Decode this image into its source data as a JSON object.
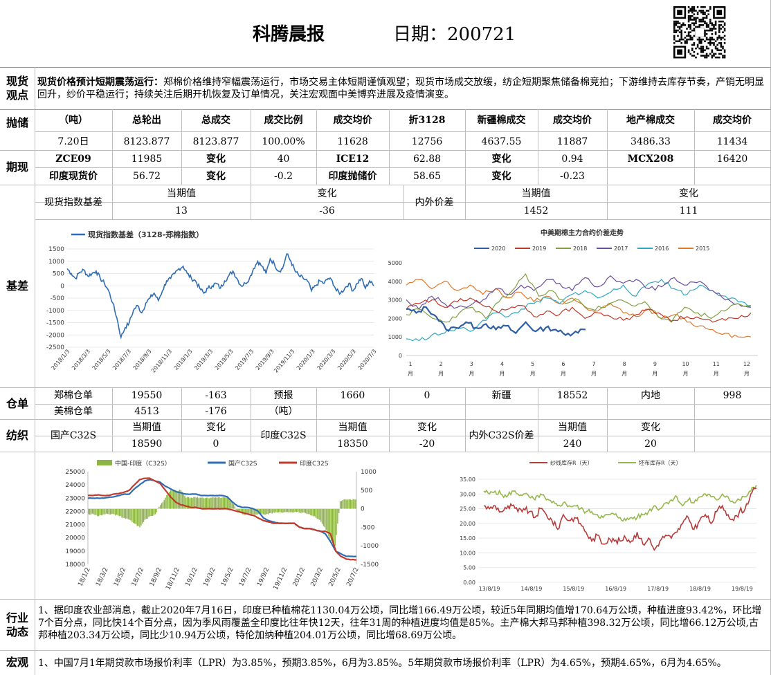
{
  "header": {
    "title": "科腾晨报",
    "date_label": "日期：200721"
  },
  "spot": {
    "label": "现货\n观点",
    "headline": "现货价格预计短期震荡运行：",
    "body": "郑棉价格维持窄幅震荡运行，市场交易主体短期谨慎观望；现货市场成交放缓，纺企短期聚焦储备棉竞拍；下游维持去库存节奏，产销无明显回升，纱价平稳运行；持续关注后期开机恢复及订单情况，关注宏观面中美博弈进展及疫情演变。"
  },
  "reserve": {
    "label": "抛储",
    "headers": [
      "（吨）",
      "总轮出",
      "总成交",
      "成交比例",
      "成交均价",
      "折3128",
      "新疆棉成交",
      "成交均价",
      "地产棉成交",
      "成交均价"
    ],
    "row": [
      "7.20日",
      "8123.877",
      "8123.877",
      "100.00%",
      "11628",
      "12756",
      "4637.55",
      "11887",
      "3486.33",
      "11434"
    ]
  },
  "futures": {
    "label": "期现",
    "row1": [
      "ZCE09",
      "11985",
      "变化",
      "40",
      "ICE12",
      "62.88",
      "变化",
      "0.94",
      "MCX208",
      "16420"
    ],
    "row2": [
      "印度现货价",
      "56.72",
      "变化",
      "-0.2",
      "印度抛储价",
      "58.65",
      "变化",
      "-0.23"
    ]
  },
  "basis": {
    "label": "基差",
    "idx_label": "现货指数基差",
    "head_cur": "当期值",
    "head_chg": "变化",
    "idx_cur": "13",
    "idx_chg": "-36",
    "io_label": "内外价差",
    "io_cur": "1452",
    "io_chg": "111"
  },
  "warehouse": {
    "label": "仓单",
    "r1": [
      "郑棉仓单",
      "19550",
      "-163",
      "预报",
      "1660",
      "0",
      "新疆",
      "18552",
      "内地",
      "998"
    ],
    "r2": [
      "美棉仓单",
      "4513",
      "-176",
      "（吨）"
    ]
  },
  "textile": {
    "label": "纺织",
    "head_cur": "当期值",
    "head_chg": "变化",
    "dom_label": "国产C32S",
    "dom_cur": "18590",
    "dom_chg": "0",
    "ind_label": "印度C32S",
    "ind_cur": "18350",
    "ind_chg": "-20",
    "io_label": "内外C32S价差",
    "io_cur": "240",
    "io_chg": "20"
  },
  "industry": {
    "label": "行业\n动态",
    "text": "1、据印度农业部消息，截止2020年7月16日，印度已种植棉花1130.04万公顷，同比增166.49万公顷，较近5年同期均值增170.64万公顷，种植进度93.42%，环比增7个百分点，同比快14个百分点，因为季风雨覆盖全印度比往年快12天，往年31周的种植进度均值是85%。主产棉大邦马邦种植398.32万公顷，同比增66.12万公顷,古邦种植203.34万公顷，同比少10.94万公顷，特伦加纳种植204.01万公顷，同比增68.69万公顷。"
  },
  "macro": {
    "label": "宏观",
    "text": "1、中国7月1年期贷款市场报价利率（LPR）为3.85%，预期3.85%，6月为3.85%。5年期贷款市场报价利率（LPR）为4.65%，预期4.65%，6月为4.65%。"
  },
  "chart_data": [
    {
      "type": "line",
      "legend": [
        "现货指数基差（3128-郑棉指数）"
      ],
      "ylim": [
        -2500,
        1500
      ],
      "yticks": [
        "1500",
        "1000",
        "500",
        "0",
        "-500",
        "-1000",
        "-1500",
        "-2000",
        "-2500"
      ],
      "xticks": [
        "2018/1/3",
        "2018/3/3",
        "2018/5/3",
        "2018/7/3",
        "2018/9/3",
        "2018/11/3",
        "2019/1/3",
        "2019/3/3",
        "2019/5/3",
        "2019/7/3",
        "2019/9/3",
        "2019/11/3",
        "2020/1/3",
        "2020/3/3",
        "2020/5/3",
        "2020/7/3"
      ],
      "series": [
        {
          "name": "现货指数基差（3128-郑棉指数）",
          "color": "#2e6db4",
          "values": [
            700,
            500,
            300,
            550,
            650,
            400,
            500,
            600,
            300,
            100,
            -200,
            -700,
            -1300,
            -2100,
            -1700,
            -1500,
            -1000,
            -800,
            -1100,
            -700,
            -500,
            -300,
            -600,
            -200,
            200,
            300,
            500,
            700,
            800,
            500,
            300,
            200,
            -100,
            -300,
            -100,
            0,
            100,
            -100,
            200,
            400,
            600,
            300,
            0,
            100,
            300,
            700,
            1000,
            800,
            500,
            1100,
            900,
            600,
            700,
            1300,
            1000,
            600,
            400,
            300,
            200,
            -200,
            0,
            200,
            100,
            300,
            200,
            -200,
            -300,
            -100,
            100,
            -200,
            100,
            300,
            -100,
            200,
            0
          ]
        }
      ]
    },
    {
      "type": "line",
      "title": "中美期棉主力合约价差走势",
      "ylim": [
        0,
        5000
      ],
      "yticks": [
        "5000",
        "4000",
        "3000",
        "2000",
        "1000",
        "0"
      ],
      "xticks": [
        "1\n月",
        "2\n月",
        "3\n月",
        "4\n月",
        "5\n月",
        "6\n月",
        "7\n月",
        "8\n月",
        "9\n月",
        "10\n月",
        "11\n月",
        "12\n月"
      ],
      "series": [
        {
          "name": "2020",
          "color": "#2e5fa5",
          "values": [
            2500,
            2300,
            2600,
            2100,
            1400,
            1500,
            1800,
            1500,
            1700,
            1400,
            1600,
            1200,
            1800,
            1300,
            1500,
            1400,
            1100,
            1300,
            1400
          ]
        },
        {
          "name": "2019",
          "color": "#c0392b",
          "values": [
            2500,
            2800,
            3000,
            2600,
            2900,
            3100,
            2700,
            2400,
            2500,
            2700,
            2100,
            2400,
            2200,
            2600,
            2000,
            2300,
            2100,
            1900,
            2200,
            2500,
            2200,
            1900,
            2100,
            2000,
            1800,
            1900,
            2000,
            2300
          ]
        },
        {
          "name": "2018",
          "color": "#7fa043",
          "values": [
            2200,
            2500,
            2000,
            1800,
            2300,
            2600,
            2000,
            2900,
            3500,
            4400,
            3200,
            3500,
            2800,
            3000,
            2500,
            2600,
            3000,
            2700,
            2900,
            2100,
            1800,
            2600,
            2300,
            2000,
            2400,
            2800,
            2700
          ]
        },
        {
          "name": "2017",
          "color": "#6b4f9e",
          "values": [
            3000,
            2500,
            3200,
            2800,
            2600,
            2700,
            3000,
            3600,
            3300,
            3800,
            3500,
            4100,
            3900,
            3500,
            4200,
            3700,
            4300,
            3900,
            4100,
            3600,
            3700,
            4200,
            3800,
            4000,
            3500,
            3000,
            2800,
            2600
          ]
        },
        {
          "name": "2016",
          "color": "#2fa8c4",
          "values": [
            900,
            800,
            1100,
            1200,
            1500,
            1300,
            1900,
            2300,
            2100,
            2500,
            2800,
            3100,
            2800,
            3300,
            3500,
            3100,
            3400,
            3800,
            3200,
            3900,
            4100,
            3600,
            3300,
            3800,
            3500,
            3200,
            2900,
            2600
          ]
        },
        {
          "name": "2015",
          "color": "#e0782a",
          "values": [
            3800,
            4100,
            3600,
            4000,
            3500,
            3800,
            3300,
            3600,
            3100,
            3400,
            2900,
            3200,
            2800,
            3100,
            2600,
            2400,
            2800,
            2300,
            2100,
            2500,
            2000,
            2200,
            1800,
            1600,
            1400,
            1200,
            1000,
            1000
          ]
        }
      ]
    },
    {
      "type": "bar+line",
      "legend": [
        "中国-印度（C32S）",
        "国产C32S",
        "印度C32S"
      ],
      "ylim_left": [
        18000,
        25000
      ],
      "ylim_right": [
        -1500,
        1000
      ],
      "yticks_left": [
        "25000",
        "24000",
        "23000",
        "22000",
        "21000",
        "20000",
        "19000",
        "18000"
      ],
      "yticks_right": [
        "1000",
        "500",
        "0",
        "-500",
        "-1000",
        "-1500"
      ],
      "xticks": [
        "18/1/2",
        "18/3/2",
        "18/5/2",
        "18/7/2",
        "18/9/2",
        "18/11/2",
        "19/1/2",
        "19/3/2",
        "19/5/2",
        "19/7/2",
        "19/9/2",
        "19/11/2",
        "20/1/2",
        "20/3/2",
        "20/5/2",
        "20/7/2"
      ],
      "series": [
        {
          "name": "中国-印度（C32S）",
          "color": "#8db543",
          "values": [
            -150,
            -150,
            -200,
            -150,
            -150,
            -150,
            -200,
            -250,
            -300,
            -400,
            -500,
            -300,
            -200,
            -150,
            100,
            300,
            500,
            500,
            500,
            300,
            300,
            300,
            300,
            300,
            300,
            300,
            300,
            300,
            200,
            -100,
            -150,
            -150,
            -150,
            -150,
            -150,
            -150,
            -100,
            -100,
            -100,
            -100,
            -100,
            -100,
            -100,
            -150,
            -200,
            -300,
            -500,
            -800,
            -1000,
            200,
            250,
            250,
            250
          ]
        },
        {
          "name": "国产C32S",
          "color": "#2e6db4",
          "values": [
            23000,
            23000,
            23000,
            23000,
            23050,
            23100,
            23200,
            23300,
            23300,
            23700,
            24000,
            24300,
            24400,
            24300,
            24200,
            23900,
            23700,
            23500,
            23400,
            23300,
            23300,
            23300,
            23200,
            23200,
            23200,
            23200,
            23200,
            23100,
            22700,
            22400,
            22300,
            22300,
            22200,
            22000,
            21500,
            21300,
            21200,
            21100,
            21100,
            21100,
            21100,
            20800,
            20700,
            20700,
            20600,
            20500,
            20300,
            19700,
            19000,
            18800,
            18600,
            18600,
            18590
          ]
        },
        {
          "name": "印度C32S",
          "color": "#c0392b",
          "values": [
            23200,
            23200,
            23250,
            23200,
            23200,
            23300,
            23350,
            23450,
            23600,
            24000,
            24400,
            24500,
            24500,
            24300,
            24100,
            23600,
            23100,
            22700,
            22500,
            22400,
            22300,
            22300,
            22200,
            22200,
            22200,
            22200,
            22200,
            22200,
            22100,
            22000,
            21900,
            21800,
            21700,
            21500,
            21300,
            21200,
            21100,
            21100,
            21100,
            21100,
            21100,
            20800,
            20700,
            20700,
            20600,
            20500,
            20500,
            20300,
            19000,
            18600,
            18400,
            18350,
            18350
          ]
        }
      ]
    },
    {
      "type": "line",
      "legend": [
        "纱线库存R（天）",
        "坯布库存R（天）"
      ],
      "ylim": [
        0,
        35
      ],
      "yticks": [
        "35.00",
        "30.00",
        "25.00",
        "20.00",
        "15.00",
        "10.00",
        "5.00",
        "0.00"
      ],
      "xticks": [
        "13/8/19",
        "14/8/19",
        "15/8/19",
        "16/8/19",
        "17/8/19",
        "18/8/19",
        "19/8/19"
      ],
      "series": [
        {
          "name": "纱线库存R（天）",
          "color": "#b83b3b",
          "values": [
            26,
            25,
            26,
            24,
            25,
            26,
            24,
            25,
            24,
            22,
            25,
            23,
            21,
            18,
            23,
            21,
            22,
            20,
            17,
            14,
            16,
            13,
            15,
            14,
            14,
            15,
            14,
            17,
            13,
            15,
            11,
            14,
            16,
            15,
            17,
            20,
            22,
            18,
            21,
            23,
            20,
            24,
            26,
            23,
            21,
            24,
            25,
            30,
            32
          ]
        },
        {
          "name": "坯布库存R（天）",
          "color": "#94b84a",
          "values": [
            31,
            30,
            31,
            30,
            29,
            31,
            30,
            30,
            29,
            28,
            30,
            28,
            27,
            26,
            27,
            26,
            26,
            25,
            24,
            24,
            23,
            22,
            23,
            23,
            22,
            21,
            22,
            22,
            23,
            24,
            26,
            25,
            27,
            28,
            29,
            26,
            28,
            27,
            29,
            30,
            29,
            28,
            30,
            29,
            27,
            28,
            29,
            31,
            33
          ]
        }
      ]
    }
  ]
}
